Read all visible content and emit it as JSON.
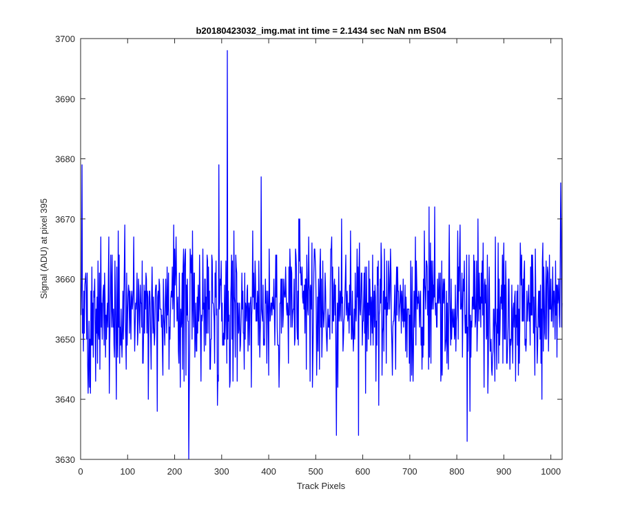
{
  "chart_data": {
    "type": "line",
    "title": "b20180423032_img.mat int time = 2.1434 sec  NaN nm BS04",
    "xlabel": "Track Pixels",
    "ylabel": "Signal (ADU) at pixel 395",
    "xlim": [
      0,
      1024
    ],
    "ylim": [
      3630,
      3700
    ],
    "xticks": [
      0,
      100,
      200,
      300,
      400,
      500,
      600,
      700,
      800,
      900,
      1000
    ],
    "yticks": [
      3630,
      3640,
      3650,
      3660,
      3670,
      3680,
      3690,
      3700
    ],
    "grid": false,
    "legend": "none",
    "series": [
      {
        "color": "#0000ff",
        "x_start": 1,
        "x_step": 1,
        "count": 1024,
        "mean": 3655.5,
        "std": 6.0,
        "min": 3630,
        "max": 3698,
        "notable_points": [
          {
            "x": 3,
            "y": 3679
          },
          {
            "x": 230,
            "y": 3630
          },
          {
            "x": 294,
            "y": 3679
          },
          {
            "x": 312,
            "y": 3698
          },
          {
            "x": 384,
            "y": 3677
          },
          {
            "x": 544,
            "y": 3634
          },
          {
            "x": 591,
            "y": 3634
          },
          {
            "x": 822,
            "y": 3633
          },
          {
            "x": 1021,
            "y": 3676
          }
        ]
      }
    ]
  }
}
